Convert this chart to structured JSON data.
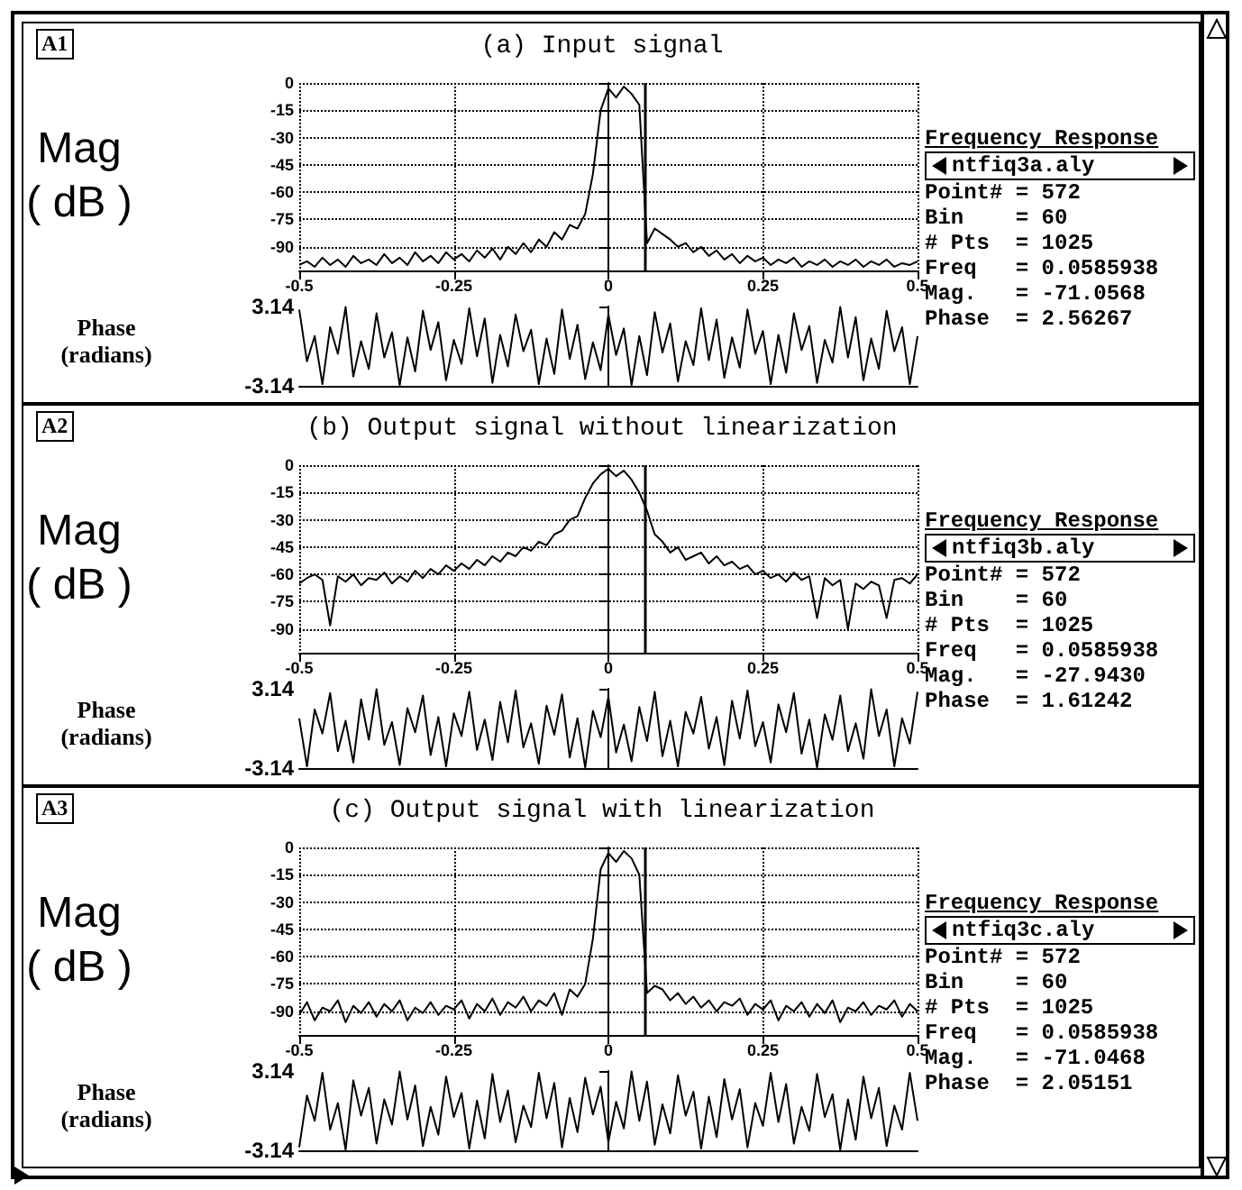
{
  "chart_data": [
    {
      "type": "line",
      "title": "(a) Input signal",
      "ylabel": "Mag\n( dB )",
      "annotations": [
        "A1"
      ],
      "grid": true,
      "xlim": [
        -0.5,
        0.5
      ],
      "xticks": [
        -0.5,
        -0.25,
        0,
        0.25,
        0.5
      ],
      "ylim": [
        -103,
        0
      ],
      "yticks": [
        0,
        -15,
        -30,
        -45,
        -60,
        -75,
        -90
      ],
      "ref_lines": [
        {
          "axis": "x",
          "value": 0.0585938
        }
      ],
      "x": [
        -0.5,
        -0.4875,
        -0.475,
        -0.4625,
        -0.45,
        -0.4375,
        -0.425,
        -0.4125,
        -0.4,
        -0.3875,
        -0.375,
        -0.3625,
        -0.35,
        -0.3375,
        -0.325,
        -0.3125,
        -0.3,
        -0.2875,
        -0.275,
        -0.2625,
        -0.25,
        -0.2375,
        -0.225,
        -0.2125,
        -0.2,
        -0.1875,
        -0.175,
        -0.1625,
        -0.15,
        -0.1375,
        -0.125,
        -0.1125,
        -0.1,
        -0.0875,
        -0.075,
        -0.0625,
        -0.05,
        -0.0375,
        -0.025,
        -0.0125,
        0,
        0.0125,
        0.025,
        0.0375,
        0.05,
        0.0625,
        0.075,
        0.0875,
        0.1,
        0.1125,
        0.125,
        0.1375,
        0.15,
        0.1625,
        0.175,
        0.1875,
        0.2,
        0.2125,
        0.225,
        0.2375,
        0.25,
        0.2625,
        0.275,
        0.2875,
        0.3,
        0.3125,
        0.325,
        0.3375,
        0.35,
        0.3625,
        0.375,
        0.3875,
        0.4,
        0.4125,
        0.425,
        0.4375,
        0.45,
        0.4625,
        0.475,
        0.4875,
        0.5
      ],
      "series": [
        {
          "color": "#000000",
          "values": [
            -100,
            -98,
            -101,
            -96,
            -100,
            -97,
            -101,
            -95,
            -99,
            -97,
            -100,
            -94,
            -99,
            -96,
            -100,
            -93,
            -98,
            -95,
            -99,
            -93,
            -97,
            -94,
            -98,
            -92,
            -96,
            -91,
            -97,
            -90,
            -94,
            -88,
            -93,
            -86,
            -90,
            -82,
            -86,
            -78,
            -80,
            -72,
            -50,
            -15,
            -3,
            -8,
            -2,
            -6,
            -12,
            -88,
            -80,
            -83,
            -86,
            -90,
            -88,
            -93,
            -90,
            -95,
            -92,
            -97,
            -94,
            -99,
            -95,
            -98,
            -96,
            -100,
            -97,
            -99,
            -96,
            -101,
            -98,
            -100,
            -97,
            -101,
            -98,
            -100,
            -97,
            -101,
            -98,
            -100,
            -97,
            -101,
            -99,
            -100,
            -98
          ]
        }
      ]
    },
    {
      "type": "other",
      "title": "Frequency Response",
      "annotations": [
        "ntfiq3a.aly",
        "Point# = 572",
        "Bin    = 60",
        "# Pts  = 1025",
        "Freq   = 0.0585938",
        "Mag.   = -71.0568",
        "Phase  = 2.56267"
      ]
    },
    {
      "type": "line",
      "ylabel": "Phase\n(radians)",
      "tick_labels": "y",
      "xlim": [
        -0.5,
        0.5
      ],
      "ylim": [
        -3.14,
        3.14
      ],
      "yticks": [
        -3.14,
        3.14
      ],
      "x": [
        -0.5,
        -0.4875,
        -0.475,
        -0.4625,
        -0.45,
        -0.4375,
        -0.425,
        -0.4125,
        -0.4,
        -0.3875,
        -0.375,
        -0.3625,
        -0.35,
        -0.3375,
        -0.325,
        -0.3125,
        -0.3,
        -0.2875,
        -0.275,
        -0.2625,
        -0.25,
        -0.2375,
        -0.225,
        -0.2125,
        -0.2,
        -0.1875,
        -0.175,
        -0.1625,
        -0.15,
        -0.1375,
        -0.125,
        -0.1125,
        -0.1,
        -0.0875,
        -0.075,
        -0.0625,
        -0.05,
        -0.0375,
        -0.025,
        -0.0125,
        0,
        0.0125,
        0.025,
        0.0375,
        0.05,
        0.0625,
        0.075,
        0.0875,
        0.1,
        0.1125,
        0.125,
        0.1375,
        0.15,
        0.1625,
        0.175,
        0.1875,
        0.2,
        0.2125,
        0.225,
        0.2375,
        0.25,
        0.2625,
        0.275,
        0.2875,
        0.3,
        0.3125,
        0.325,
        0.3375,
        0.35,
        0.3625,
        0.375,
        0.3875,
        0.4,
        0.4125,
        0.425,
        0.4375,
        0.45,
        0.4625,
        0.475,
        0.4875,
        0.5
      ],
      "series": [
        {
          "color": "#000000",
          "values": [
            2.9,
            -1.2,
            0.8,
            -3.0,
            1.5,
            -0.6,
            3.1,
            -2.4,
            0.4,
            -1.8,
            2.6,
            -0.9,
            1.1,
            -3.1,
            0.7,
            -2.0,
            2.8,
            -0.3,
            1.9,
            -2.7,
            0.5,
            -1.4,
            3.0,
            -0.8,
            2.2,
            -2.9,
            0.9,
            -1.6,
            2.5,
            -0.4,
            1.3,
            -3.0,
            0.6,
            -2.2,
            2.9,
            -1.0,
            1.7,
            -2.6,
            0.3,
            -1.9,
            2.5,
            -0.7,
            1.4,
            -3.1,
            0.8,
            -2.3,
            2.7,
            -0.5,
            1.8,
            -2.8,
            0.4,
            -1.5,
            3.0,
            -1.1,
            2.1,
            -2.5,
            0.7,
            -1.7,
            2.9,
            -0.6,
            1.2,
            -3.0,
            0.9,
            -2.1,
            2.6,
            -0.3,
            1.6,
            -2.9,
            0.5,
            -1.3,
            3.1,
            -0.9,
            2.3,
            -2.7,
            0.6,
            -1.8,
            2.8,
            -0.4,
            1.5,
            -3.0,
            0.8
          ]
        }
      ]
    },
    {
      "type": "line",
      "title": "(b) Output signal without linearization",
      "ylabel": "Mag\n( dB )",
      "annotations": [
        "A2"
      ],
      "grid": true,
      "xlim": [
        -0.5,
        0.5
      ],
      "xticks": [
        -0.5,
        -0.25,
        0,
        0.25,
        0.5
      ],
      "ylim": [
        -103,
        0
      ],
      "yticks": [
        0,
        -15,
        -30,
        -45,
        -60,
        -75,
        -90
      ],
      "ref_lines": [
        {
          "axis": "x",
          "value": 0.0585938
        }
      ],
      "x": [
        -0.5,
        -0.4875,
        -0.475,
        -0.4625,
        -0.45,
        -0.4375,
        -0.425,
        -0.4125,
        -0.4,
        -0.3875,
        -0.375,
        -0.3625,
        -0.35,
        -0.3375,
        -0.325,
        -0.3125,
        -0.3,
        -0.2875,
        -0.275,
        -0.2625,
        -0.25,
        -0.2375,
        -0.225,
        -0.2125,
        -0.2,
        -0.1875,
        -0.175,
        -0.1625,
        -0.15,
        -0.1375,
        -0.125,
        -0.1125,
        -0.1,
        -0.0875,
        -0.075,
        -0.0625,
        -0.05,
        -0.0375,
        -0.025,
        -0.0125,
        0,
        0.0125,
        0.025,
        0.0375,
        0.05,
        0.0625,
        0.075,
        0.0875,
        0.1,
        0.1125,
        0.125,
        0.1375,
        0.15,
        0.1625,
        0.175,
        0.1875,
        0.2,
        0.2125,
        0.225,
        0.2375,
        0.25,
        0.2625,
        0.275,
        0.2875,
        0.3,
        0.3125,
        0.325,
        0.3375,
        0.35,
        0.3625,
        0.375,
        0.3875,
        0.4,
        0.4125,
        0.425,
        0.4375,
        0.45,
        0.4625,
        0.475,
        0.4875,
        0.5
      ],
      "series": [
        {
          "color": "#000000",
          "values": [
            -65,
            -62,
            -60,
            -63,
            -88,
            -61,
            -64,
            -60,
            -66,
            -62,
            -63,
            -59,
            -65,
            -61,
            -64,
            -58,
            -62,
            -57,
            -60,
            -55,
            -58,
            -54,
            -57,
            -52,
            -55,
            -50,
            -53,
            -48,
            -50,
            -45,
            -47,
            -42,
            -44,
            -38,
            -36,
            -30,
            -28,
            -18,
            -10,
            -5,
            -2,
            -6,
            -3,
            -8,
            -15,
            -25,
            -38,
            -42,
            -48,
            -45,
            -52,
            -50,
            -48,
            -54,
            -50,
            -55,
            -53,
            -57,
            -55,
            -60,
            -58,
            -62,
            -60,
            -64,
            -59,
            -63,
            -61,
            -84,
            -62,
            -66,
            -63,
            -90,
            -65,
            -68,
            -64,
            -66,
            -84,
            -63,
            -62,
            -65,
            -60
          ]
        }
      ]
    },
    {
      "type": "other",
      "title": "Frequency Response",
      "annotations": [
        "ntfiq3b.aly",
        "Point# = 572",
        "Bin    = 60",
        "# Pts  = 1025",
        "Freq   = 0.0585938",
        "Mag.   = -27.9430",
        "Phase  = 1.61242"
      ]
    },
    {
      "type": "line",
      "ylabel": "Phase\n(radians)",
      "tick_labels": "y",
      "xlim": [
        -0.5,
        0.5
      ],
      "ylim": [
        -3.14,
        3.14
      ],
      "yticks": [
        -3.14,
        3.14
      ],
      "x": [
        -0.5,
        -0.4875,
        -0.475,
        -0.4625,
        -0.45,
        -0.4375,
        -0.425,
        -0.4125,
        -0.4,
        -0.3875,
        -0.375,
        -0.3625,
        -0.35,
        -0.3375,
        -0.325,
        -0.3125,
        -0.3,
        -0.2875,
        -0.275,
        -0.2625,
        -0.25,
        -0.2375,
        -0.225,
        -0.2125,
        -0.2,
        -0.1875,
        -0.175,
        -0.1625,
        -0.15,
        -0.1375,
        -0.125,
        -0.1125,
        -0.1,
        -0.0875,
        -0.075,
        -0.0625,
        -0.05,
        -0.0375,
        -0.025,
        -0.0125,
        0,
        0.0125,
        0.025,
        0.0375,
        0.05,
        0.0625,
        0.075,
        0.0875,
        0.1,
        0.1125,
        0.125,
        0.1375,
        0.15,
        0.1625,
        0.175,
        0.1875,
        0.2,
        0.2125,
        0.225,
        0.2375,
        0.25,
        0.2625,
        0.275,
        0.2875,
        0.3,
        0.3125,
        0.325,
        0.3375,
        0.35,
        0.3625,
        0.375,
        0.3875,
        0.4,
        0.4125,
        0.425,
        0.4375,
        0.45,
        0.4625,
        0.475,
        0.4875,
        0.5
      ],
      "series": [
        {
          "color": "#000000",
          "values": [
            0.8,
            -3.0,
            1.5,
            -0.4,
            2.8,
            -1.8,
            0.6,
            -2.7,
            2.3,
            -0.9,
            3.1,
            -1.3,
            0.5,
            -2.9,
            1.6,
            -0.3,
            2.6,
            -2.1,
            0.9,
            -3.0,
            1.2,
            -0.6,
            2.9,
            -1.7,
            0.7,
            -2.5,
            2.1,
            -1.1,
            3.0,
            -1.5,
            0.4,
            -2.8,
            1.8,
            -0.5,
            2.7,
            -2.3,
            0.8,
            -3.1,
            1.4,
            -0.7,
            2.5,
            -1.9,
            0.3,
            -2.6,
            1.7,
            -1.0,
            2.9,
            -2.2,
            0.6,
            -3.0,
            1.3,
            -0.4,
            2.5,
            -1.6,
            0.9,
            -2.9,
            2.2,
            -0.8,
            3.0,
            -1.4,
            0.5,
            -2.7,
            1.9,
            -0.3,
            2.8,
            -2.0,
            0.7,
            -3.1,
            1.1,
            -0.9,
            2.6,
            -1.8,
            0.4,
            -2.4,
            3.1,
            -0.6,
            1.5,
            -3.0,
            0.8,
            -1.2,
            2.9
          ]
        }
      ]
    },
    {
      "type": "line",
      "title": "(c) Output signal with linearization",
      "ylabel": "Mag\n( dB )",
      "annotations": [
        "A3"
      ],
      "grid": true,
      "xlim": [
        -0.5,
        0.5
      ],
      "xticks": [
        -0.5,
        -0.25,
        0,
        0.25,
        0.5
      ],
      "ylim": [
        -103,
        0
      ],
      "yticks": [
        0,
        -15,
        -30,
        -45,
        -60,
        -75,
        -90
      ],
      "ref_lines": [
        {
          "axis": "x",
          "value": 0.0585938
        }
      ],
      "x": [
        -0.5,
        -0.4875,
        -0.475,
        -0.4625,
        -0.45,
        -0.4375,
        -0.425,
        -0.4125,
        -0.4,
        -0.3875,
        -0.375,
        -0.3625,
        -0.35,
        -0.3375,
        -0.325,
        -0.3125,
        -0.3,
        -0.2875,
        -0.275,
        -0.2625,
        -0.25,
        -0.2375,
        -0.225,
        -0.2125,
        -0.2,
        -0.1875,
        -0.175,
        -0.1625,
        -0.15,
        -0.1375,
        -0.125,
        -0.1125,
        -0.1,
        -0.0875,
        -0.075,
        -0.0625,
        -0.05,
        -0.0375,
        -0.025,
        -0.0125,
        0,
        0.0125,
        0.025,
        0.0375,
        0.05,
        0.0625,
        0.075,
        0.0875,
        0.1,
        0.1125,
        0.125,
        0.1375,
        0.15,
        0.1625,
        0.175,
        0.1875,
        0.2,
        0.2125,
        0.225,
        0.2375,
        0.25,
        0.2625,
        0.275,
        0.2875,
        0.3,
        0.3125,
        0.325,
        0.3375,
        0.35,
        0.3625,
        0.375,
        0.3875,
        0.4,
        0.4125,
        0.425,
        0.4375,
        0.45,
        0.4625,
        0.475,
        0.4875,
        0.5
      ],
      "series": [
        {
          "color": "#000000",
          "values": [
            -92,
            -85,
            -95,
            -88,
            -90,
            -84,
            -96,
            -87,
            -91,
            -85,
            -93,
            -86,
            -90,
            -84,
            -95,
            -88,
            -91,
            -85,
            -92,
            -87,
            -89,
            -84,
            -94,
            -86,
            -90,
            -83,
            -92,
            -85,
            -88,
            -82,
            -90,
            -84,
            -87,
            -80,
            -92,
            -78,
            -82,
            -75,
            -50,
            -12,
            -3,
            -8,
            -2,
            -6,
            -15,
            -80,
            -76,
            -78,
            -84,
            -80,
            -86,
            -82,
            -88,
            -84,
            -90,
            -85,
            -87,
            -83,
            -92,
            -86,
            -89,
            -84,
            -95,
            -87,
            -90,
            -85,
            -93,
            -86,
            -91,
            -84,
            -96,
            -88,
            -90,
            -85,
            -92,
            -87,
            -89,
            -84,
            -93,
            -86,
            -90
          ]
        }
      ]
    },
    {
      "type": "other",
      "title": "Frequency Response",
      "annotations": [
        "ntfiq3c.aly",
        "Point# = 572",
        "Bin    = 60",
        "# Pts  = 1025",
        "Freq   = 0.0585938",
        "Mag.   = -71.0468",
        "Phase  = 2.05151"
      ]
    },
    {
      "type": "line",
      "ylabel": "Phase\n(radians)",
      "tick_labels": "y",
      "xlim": [
        -0.5,
        0.5
      ],
      "ylim": [
        -3.14,
        3.14
      ],
      "yticks": [
        -3.14,
        3.14
      ],
      "x": [
        -0.5,
        -0.4875,
        -0.475,
        -0.4625,
        -0.45,
        -0.4375,
        -0.425,
        -0.4125,
        -0.4,
        -0.3875,
        -0.375,
        -0.3625,
        -0.35,
        -0.3375,
        -0.325,
        -0.3125,
        -0.3,
        -0.2875,
        -0.275,
        -0.2625,
        -0.25,
        -0.2375,
        -0.225,
        -0.2125,
        -0.2,
        -0.1875,
        -0.175,
        -0.1625,
        -0.15,
        -0.1375,
        -0.125,
        -0.1125,
        -0.1,
        -0.0875,
        -0.075,
        -0.0625,
        -0.05,
        -0.0375,
        -0.025,
        -0.0125,
        0,
        0.0125,
        0.025,
        0.0375,
        0.05,
        0.0625,
        0.075,
        0.0875,
        0.1,
        0.1125,
        0.125,
        0.1375,
        0.15,
        0.1625,
        0.175,
        0.1875,
        0.2,
        0.2125,
        0.225,
        0.2375,
        0.25,
        0.2625,
        0.275,
        0.2875,
        0.3,
        0.3125,
        0.325,
        0.3375,
        0.35,
        0.3625,
        0.375,
        0.3875,
        0.4,
        0.4125,
        0.425,
        0.4375,
        0.45,
        0.4625,
        0.475,
        0.4875,
        0.5
      ],
      "series": [
        {
          "color": "#000000",
          "values": [
            -2.9,
            1.2,
            -0.8,
            3.0,
            -1.5,
            0.6,
            -3.1,
            2.4,
            -0.4,
            1.8,
            -2.6,
            0.9,
            -1.1,
            3.1,
            -0.7,
            2.0,
            -2.8,
            0.3,
            -1.9,
            2.7,
            -0.5,
            1.4,
            -3.0,
            0.8,
            -2.2,
            2.9,
            -0.9,
            1.6,
            -2.5,
            0.4,
            -1.3,
            3.0,
            -0.6,
            2.2,
            -2.9,
            1.0,
            -1.7,
            2.6,
            -0.3,
            1.9,
            -2.5,
            0.7,
            -1.4,
            3.1,
            -0.8,
            2.3,
            -2.7,
            0.5,
            -1.8,
            2.8,
            -0.4,
            1.5,
            -3.0,
            1.1,
            -2.1,
            2.5,
            -0.7,
            1.7,
            -2.9,
            0.6,
            -1.2,
            3.0,
            -0.9,
            2.1,
            -2.6,
            0.3,
            -1.6,
            2.9,
            -0.5,
            1.3,
            -3.1,
            0.9,
            -2.3,
            2.7,
            -0.6,
            1.8,
            -2.8,
            0.4,
            -1.5,
            3.0,
            -0.8
          ]
        }
      ]
    }
  ]
}
